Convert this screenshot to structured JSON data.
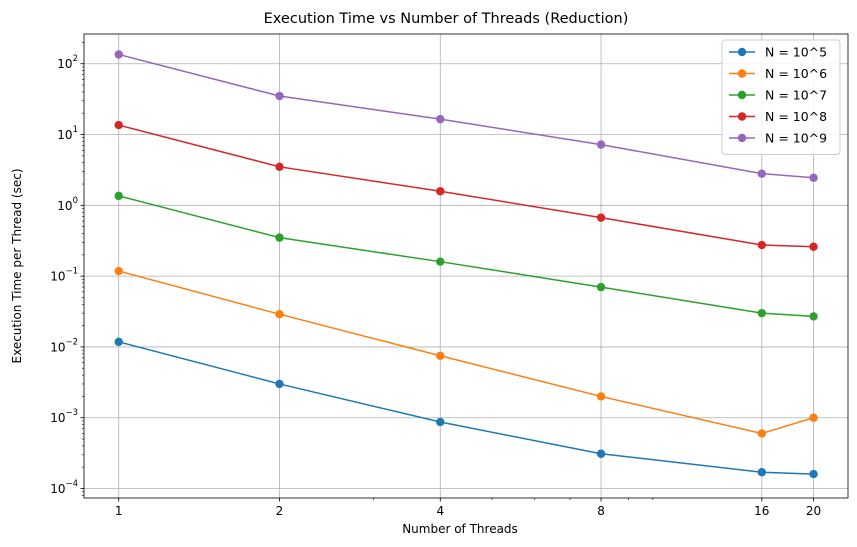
{
  "chart_data": {
    "type": "line",
    "title": "Execution Time vs Number of Threads (Reduction)",
    "xlabel": "Number of Threads",
    "ylabel": "Execution Time per Thread (sec)",
    "x_scale": "log",
    "y_scale": "log",
    "x": [
      1,
      2,
      4,
      8,
      16,
      20
    ],
    "x_tick_labels": [
      "1",
      "2",
      "4",
      "8",
      "16",
      "20"
    ],
    "y_ticks": [
      {
        "value": 0.0001,
        "base": "10",
        "exp": "−4"
      },
      {
        "value": 0.001,
        "base": "10",
        "exp": "−3"
      },
      {
        "value": 0.01,
        "base": "10",
        "exp": "−2"
      },
      {
        "value": 0.1,
        "base": "10",
        "exp": "−1"
      },
      {
        "value": 1,
        "base": "10",
        "exp": "0"
      },
      {
        "value": 10,
        "base": "10",
        "exp": "1"
      },
      {
        "value": 100,
        "base": "10",
        "exp": "2"
      }
    ],
    "ylim": [
      7.35e-05,
      263
    ],
    "xlim": [
      0.861,
      23.2
    ],
    "grid": true,
    "legend_position": "top-right",
    "series": [
      {
        "name": "N = 10^5",
        "color": "#1f77b4",
        "values": [
          0.0118,
          0.003,
          0.00087,
          0.00031,
          0.00017,
          0.00016
        ]
      },
      {
        "name": "N = 10^6",
        "color": "#ff7f0e",
        "values": [
          0.118,
          0.029,
          0.0075,
          0.002,
          0.0006,
          0.001
        ]
      },
      {
        "name": "N = 10^7",
        "color": "#2ca02c",
        "values": [
          1.36,
          0.35,
          0.16,
          0.07,
          0.03,
          0.027
        ]
      },
      {
        "name": "N = 10^8",
        "color": "#d62728",
        "values": [
          13.6,
          3.5,
          1.58,
          0.67,
          0.275,
          0.26
        ]
      },
      {
        "name": "N = 10^9",
        "color": "#9467bd",
        "values": [
          135,
          35,
          16.5,
          7.2,
          2.8,
          2.45
        ]
      }
    ]
  }
}
